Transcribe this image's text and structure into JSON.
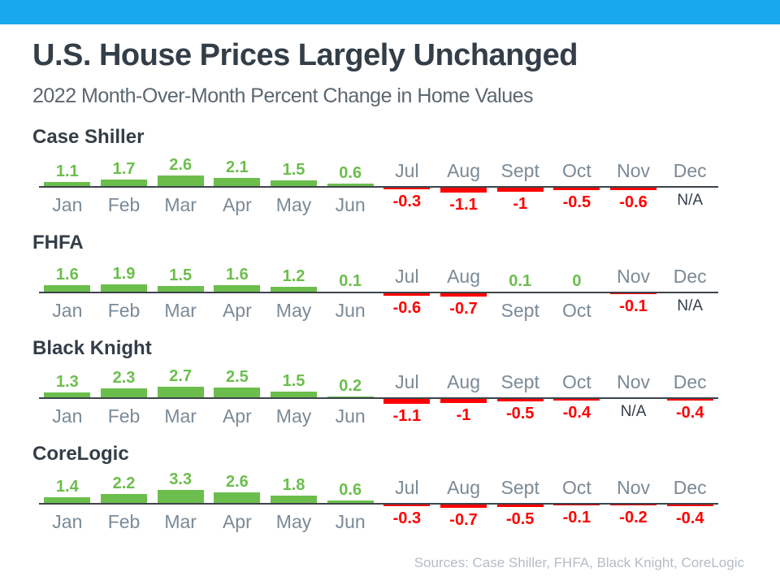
{
  "header": {
    "title": "U.S. House Prices Largely Unchanged",
    "subtitle": "2022 Month-Over-Month Percent Change in Home Values"
  },
  "footer": {
    "sources": "Sources: Case Shiller, FHFA, Black Knight, CoreLogic"
  },
  "colors": {
    "accent_bar": "#18a9ed",
    "title_text": "#333e48",
    "subtitle_text": "#5b6770",
    "month_label": "#7b8a97",
    "positive": "#6cbe4c",
    "negative": "#ff0000",
    "na_text": "#333e48",
    "baseline": "#3d444b",
    "sources_text": "#b3bdc5",
    "background": "#ffffff"
  },
  "chart_data": [
    {
      "type": "bar",
      "title": "Case Shiller",
      "categories": [
        "Jan",
        "Feb",
        "Mar",
        "Apr",
        "May",
        "Jun",
        "Jul",
        "Aug",
        "Sept",
        "Oct",
        "Nov",
        "Dec"
      ],
      "values": [
        1.1,
        1.7,
        2.6,
        2.1,
        1.5,
        0.6,
        -0.3,
        -1.1,
        -1,
        -0.5,
        -0.6,
        "N/A"
      ],
      "baseline": 0,
      "ylim": [
        -1.5,
        3.5
      ],
      "grid": false,
      "legend": "none"
    },
    {
      "type": "bar",
      "title": "FHFA",
      "categories": [
        "Jan",
        "Feb",
        "Mar",
        "Apr",
        "May",
        "Jun",
        "Jul",
        "Aug",
        "Sept",
        "Oct",
        "Nov",
        "Dec"
      ],
      "values": [
        1.6,
        1.9,
        1.5,
        1.6,
        1.2,
        0.1,
        -0.6,
        -0.7,
        0.1,
        0,
        -0.1,
        "N/A"
      ],
      "baseline": 0,
      "ylim": [
        -1.5,
        3.5
      ],
      "grid": false,
      "legend": "none"
    },
    {
      "type": "bar",
      "title": "Black Knight",
      "categories": [
        "Jan",
        "Feb",
        "Mar",
        "Apr",
        "May",
        "Jun",
        "Jul",
        "Aug",
        "Sept",
        "Oct",
        "Nov",
        "Dec"
      ],
      "values": [
        1.3,
        2.3,
        2.7,
        2.5,
        1.5,
        0.2,
        -1.1,
        -1,
        -0.5,
        -0.4,
        "N/A",
        -0.4
      ],
      "baseline": 0,
      "ylim": [
        -1.5,
        3.5
      ],
      "grid": false,
      "legend": "none"
    },
    {
      "type": "bar",
      "title": "CoreLogic",
      "categories": [
        "Jan",
        "Feb",
        "Mar",
        "Apr",
        "May",
        "Jun",
        "Jul",
        "Aug",
        "Sept",
        "Oct",
        "Nov",
        "Dec"
      ],
      "values": [
        1.4,
        2.2,
        3.3,
        2.6,
        1.8,
        0.6,
        -0.3,
        -0.7,
        -0.5,
        -0.1,
        -0.2,
        -0.4
      ],
      "baseline": 0,
      "ylim": [
        -1.5,
        3.5
      ],
      "grid": false,
      "legend": "none"
    }
  ]
}
